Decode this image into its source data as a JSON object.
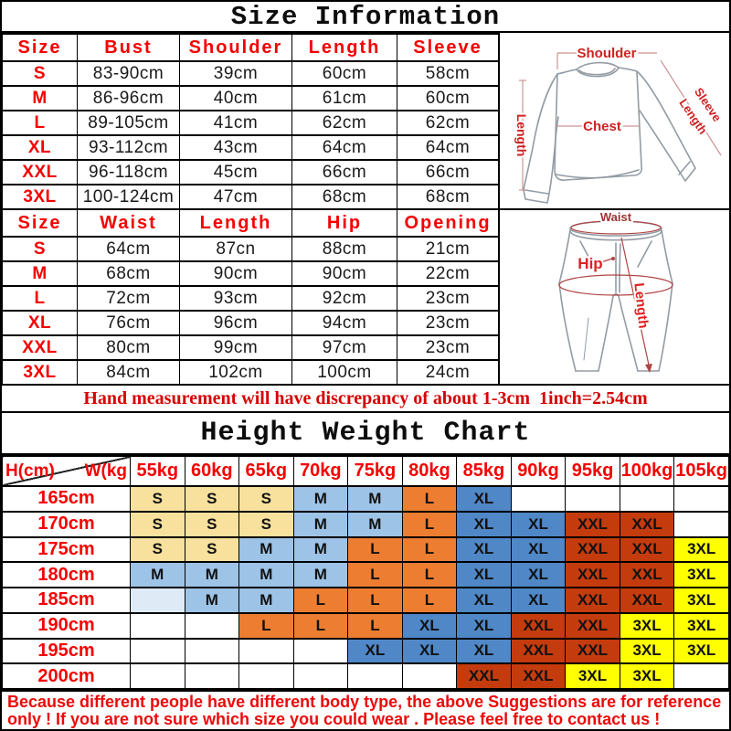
{
  "palette": {
    "red": "#F50000",
    "note_red": "#D60000",
    "footer_red": "#EC0A0A",
    "diagram_red": "#CC2222",
    "diagram_dark_red": "#A03434",
    "sketch_gray": "#939BA3"
  },
  "title": "Size Information",
  "shirt_table": {
    "headers": [
      "Size",
      "Bust",
      "Shoulder",
      "Length",
      "Sleeve"
    ],
    "rows": [
      [
        "S",
        "83-90cm",
        "39cm",
        "60cm",
        "58cm"
      ],
      [
        "M",
        "86-96cm",
        "40cm",
        "61cm",
        "60cm"
      ],
      [
        "L",
        "89-105cm",
        "41cm",
        "62cm",
        "62cm"
      ],
      [
        "XL",
        "93-112cm",
        "43cm",
        "64cm",
        "64cm"
      ],
      [
        "XXL",
        "96-118cm",
        "45cm",
        "66cm",
        "66cm"
      ],
      [
        "3XL",
        "100-124cm",
        "47cm",
        "68cm",
        "68cm"
      ]
    ]
  },
  "pants_table": {
    "headers": [
      "Size",
      "Waist",
      "Length",
      "Hip",
      "Opening"
    ],
    "rows": [
      [
        "S",
        "64cm",
        "87cn",
        "88cm",
        "21cm"
      ],
      [
        "M",
        "68cm",
        "90cm",
        "90cm",
        "22cm"
      ],
      [
        "L",
        "72cm",
        "93cm",
        "92cm",
        "23cm"
      ],
      [
        "XL",
        "76cm",
        "96cm",
        "94cm",
        "23cm"
      ],
      [
        "XXL",
        "80cm",
        "99cm",
        "97cm",
        "23cm"
      ],
      [
        "3XL",
        "84cm",
        "102cm",
        "100cm",
        "24cm"
      ]
    ]
  },
  "shirt_diagram": {
    "shoulder": "Shoulder",
    "length": "Length",
    "chest": "Chest",
    "sleeve_line1": "Sleeve",
    "sleeve_line2": "Length"
  },
  "pants_diagram": {
    "waist": "Waist",
    "hip": "Hip",
    "length": "Length"
  },
  "note": "Hand measurement will have discrepancy of about 1-3cm  1inch=2.54cm",
  "height_weight_chart": {
    "title": "Height Weight Chart",
    "corner": {
      "height_label": "H(cm)",
      "weight_label": "W(kg"
    },
    "weight_headers": [
      "55kg",
      "60kg",
      "65kg",
      "70kg",
      "75kg",
      "80kg",
      "85kg",
      "90kg",
      "95kg",
      "100kg",
      "105kg"
    ],
    "size_colors": {
      "S": "#F7E19D",
      "M": "#9DC3E6",
      "L": "#ED7D31",
      "XL": "#4F87C7",
      "XXL": "#C43B0D",
      "3XL": "#FFFF00",
      "pale": "#DEEAF6",
      "": "#FFFFFF"
    },
    "rows": [
      {
        "height": "165cm",
        "cells": [
          {
            "t": "S",
            "k": "S"
          },
          {
            "t": "S",
            "k": "S"
          },
          {
            "t": "S",
            "k": "S"
          },
          {
            "t": "M",
            "k": "M"
          },
          {
            "t": "M",
            "k": "M"
          },
          {
            "t": "L",
            "k": "L"
          },
          {
            "t": "XL",
            "k": "XL"
          },
          {
            "t": "",
            "k": ""
          },
          {
            "t": "",
            "k": ""
          },
          {
            "t": "",
            "k": ""
          },
          {
            "t": "",
            "k": ""
          }
        ]
      },
      {
        "height": "170cm",
        "cells": [
          {
            "t": "S",
            "k": "S"
          },
          {
            "t": "S",
            "k": "S"
          },
          {
            "t": "S",
            "k": "S"
          },
          {
            "t": "M",
            "k": "M"
          },
          {
            "t": "M",
            "k": "M"
          },
          {
            "t": "L",
            "k": "L"
          },
          {
            "t": "XL",
            "k": "XL"
          },
          {
            "t": "XL",
            "k": "XL"
          },
          {
            "t": "XXL",
            "k": "XXL"
          },
          {
            "t": "XXL",
            "k": "XXL"
          },
          {
            "t": "",
            "k": ""
          }
        ]
      },
      {
        "height": "175cm",
        "cells": [
          {
            "t": "S",
            "k": "S"
          },
          {
            "t": "S",
            "k": "S"
          },
          {
            "t": "M",
            "k": "M"
          },
          {
            "t": "M",
            "k": "M"
          },
          {
            "t": "L",
            "k": "L"
          },
          {
            "t": "L",
            "k": "L"
          },
          {
            "t": "XL",
            "k": "XL"
          },
          {
            "t": "XL",
            "k": "XL"
          },
          {
            "t": "XXL",
            "k": "XXL"
          },
          {
            "t": "XXL",
            "k": "XXL"
          },
          {
            "t": "3XL",
            "k": "3XL"
          }
        ]
      },
      {
        "height": "180cm",
        "cells": [
          {
            "t": "M",
            "k": "M"
          },
          {
            "t": "M",
            "k": "M"
          },
          {
            "t": "M",
            "k": "M"
          },
          {
            "t": "M",
            "k": "M"
          },
          {
            "t": "L",
            "k": "L"
          },
          {
            "t": "L",
            "k": "L"
          },
          {
            "t": "XL",
            "k": "XL"
          },
          {
            "t": "XL",
            "k": "XL"
          },
          {
            "t": "XXL",
            "k": "XXL"
          },
          {
            "t": "XXL",
            "k": "XXL"
          },
          {
            "t": "3XL",
            "k": "3XL"
          }
        ]
      },
      {
        "height": "185cm",
        "cells": [
          {
            "t": "",
            "k": "pale"
          },
          {
            "t": "M",
            "k": "M"
          },
          {
            "t": "M",
            "k": "M"
          },
          {
            "t": "L",
            "k": "L"
          },
          {
            "t": "L",
            "k": "L"
          },
          {
            "t": "L",
            "k": "L"
          },
          {
            "t": "XL",
            "k": "XL"
          },
          {
            "t": "XL",
            "k": "XL"
          },
          {
            "t": "XXL",
            "k": "XXL"
          },
          {
            "t": "XXL",
            "k": "XXL"
          },
          {
            "t": "3XL",
            "k": "3XL"
          }
        ]
      },
      {
        "height": "190cm",
        "cells": [
          {
            "t": "",
            "k": ""
          },
          {
            "t": "",
            "k": ""
          },
          {
            "t": "L",
            "k": "L"
          },
          {
            "t": "L",
            "k": "L"
          },
          {
            "t": "L",
            "k": "L"
          },
          {
            "t": "XL",
            "k": "XL"
          },
          {
            "t": "XL",
            "k": "XL"
          },
          {
            "t": "XXL",
            "k": "XXL"
          },
          {
            "t": "XXL",
            "k": "XXL"
          },
          {
            "t": "3XL",
            "k": "3XL"
          },
          {
            "t": "3XL",
            "k": "3XL"
          }
        ]
      },
      {
        "height": "195cm",
        "cells": [
          {
            "t": "",
            "k": ""
          },
          {
            "t": "",
            "k": ""
          },
          {
            "t": "",
            "k": ""
          },
          {
            "t": "",
            "k": ""
          },
          {
            "t": "XL",
            "k": "XL"
          },
          {
            "t": "XL",
            "k": "XL"
          },
          {
            "t": "XL",
            "k": "XL"
          },
          {
            "t": "XXL",
            "k": "XXL"
          },
          {
            "t": "XXL",
            "k": "XXL"
          },
          {
            "t": "3XL",
            "k": "3XL"
          },
          {
            "t": "3XL",
            "k": "3XL"
          }
        ]
      },
      {
        "height": "200cm",
        "cells": [
          {
            "t": "",
            "k": ""
          },
          {
            "t": "",
            "k": ""
          },
          {
            "t": "",
            "k": ""
          },
          {
            "t": "",
            "k": ""
          },
          {
            "t": "",
            "k": ""
          },
          {
            "t": "",
            "k": ""
          },
          {
            "t": "XXL",
            "k": "XXL"
          },
          {
            "t": "XXL",
            "k": "XXL"
          },
          {
            "t": "3XL",
            "k": "3XL"
          },
          {
            "t": "3XL",
            "k": "3XL"
          },
          {
            "t": "",
            "k": ""
          }
        ]
      }
    ]
  },
  "footer": {
    "line1": "Because different people have different body type, the above Suggestions are for reference",
    "line2": "only ! If you are not sure which size you could wear . Please feel free to contact us !"
  }
}
